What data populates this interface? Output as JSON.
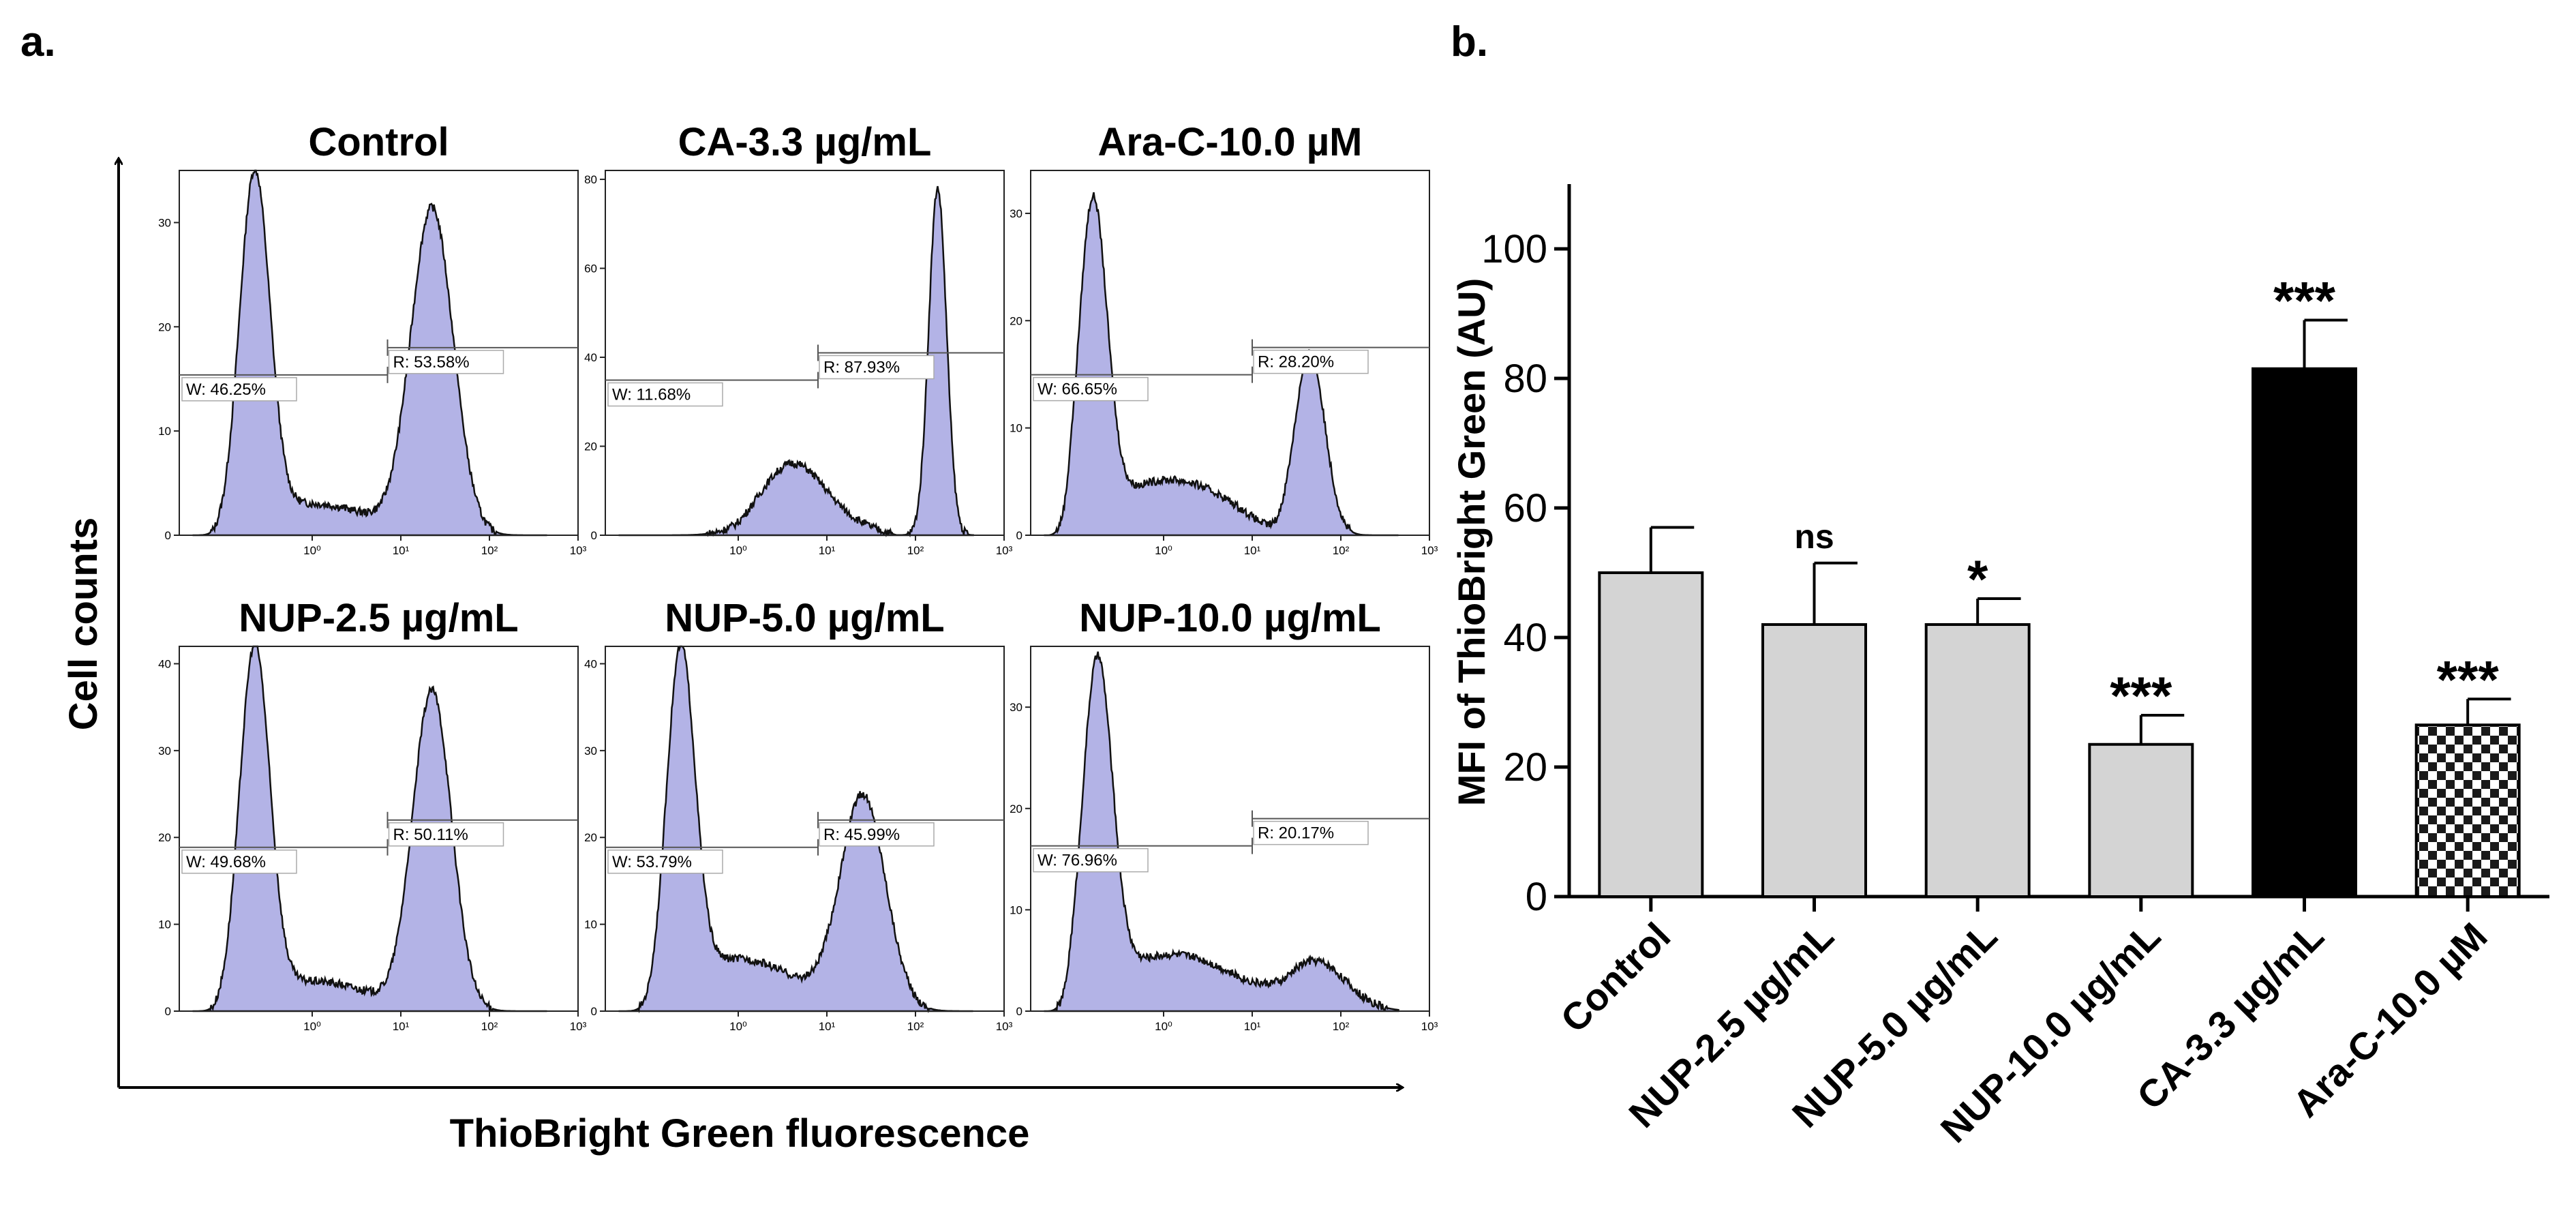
{
  "panel_a": {
    "label": "a.",
    "y_axis_label": "Cell counts",
    "x_axis_label": "ThioBright Green fluorescence",
    "x_tick_labels": [
      "10⁰",
      "10¹",
      "10²",
      "10³"
    ],
    "fill_color": "#b3b3e6",
    "histograms": [
      {
        "title": "Control",
        "ymax": 35,
        "yticks": [
          0,
          10,
          20,
          30
        ],
        "w_label": "W: 46.25%",
        "r_label": "R: 53.58%",
        "peaks": [
          {
            "pos": -0.65,
            "h": 33.5,
            "w": 0.17
          },
          {
            "pos": 1.35,
            "h": 31.5,
            "w": 0.24
          }
        ],
        "base": {
          "start": -1.0,
          "end": 2.0,
          "h": 3.5
        },
        "gate_y": 18,
        "split": 0.85
      },
      {
        "title": "CA-3.3 µg/mL",
        "ymax": 82,
        "yticks": [
          0,
          20,
          40,
          60,
          80
        ],
        "w_label": "W: 11.68%",
        "r_label": "R: 87.93%",
        "peaks": [
          {
            "pos": 0.6,
            "h": 13,
            "w": 0.35
          },
          {
            "pos": 2.25,
            "h": 78,
            "w": 0.1
          }
        ],
        "base": {
          "start": 0.0,
          "end": 2.5,
          "h": 4
        },
        "gate_y": 41,
        "split": 0.9
      },
      {
        "title": "Ara-C-10.0 µM",
        "ymax": 34,
        "yticks": [
          0,
          10,
          20,
          30
        ],
        "w_label": "W: 66.65%",
        "r_label": "R: 28.20%",
        "peaks": [
          {
            "pos": -0.8,
            "h": 30,
            "w": 0.16
          },
          {
            "pos": 1.65,
            "h": 17,
            "w": 0.17
          }
        ],
        "base": {
          "start": -1.0,
          "end": 2.2,
          "h": 6
        },
        "gate_y": 17.5,
        "split": 1.0
      },
      {
        "title": "NUP-2.5 µg/mL",
        "ymax": 42,
        "yticks": [
          0,
          10,
          20,
          30,
          40
        ],
        "w_label": "W: 49.68%",
        "r_label": "R: 50.11%",
        "peaks": [
          {
            "pos": -0.65,
            "h": 40.5,
            "w": 0.17
          },
          {
            "pos": 1.35,
            "h": 37,
            "w": 0.22
          }
        ],
        "base": {
          "start": -1.0,
          "end": 2.0,
          "h": 4
        },
        "gate_y": 22,
        "split": 0.85
      },
      {
        "title": "NUP-5.0 µg/mL",
        "ymax": 42,
        "yticks": [
          0,
          10,
          20,
          30,
          40
        ],
        "w_label": "W: 53.79%",
        "r_label": "R: 45.99%",
        "peaks": [
          {
            "pos": -0.65,
            "h": 39,
            "w": 0.16
          },
          {
            "pos": 1.4,
            "h": 25,
            "w": 0.26
          }
        ],
        "base": {
          "start": -1.0,
          "end": 2.0,
          "h": 7
        },
        "gate_y": 22,
        "split": 0.9
      },
      {
        "title": "NUP-10.0 µg/mL",
        "ymax": 36,
        "yticks": [
          0,
          10,
          20,
          30
        ],
        "w_label": "W: 76.96%",
        "r_label": "R: 20.17%",
        "peaks": [
          {
            "pos": -0.75,
            "h": 33,
            "w": 0.17
          },
          {
            "pos": 1.7,
            "h": 5,
            "w": 0.35
          }
        ],
        "base": {
          "start": -1.0,
          "end": 2.3,
          "h": 6.5
        },
        "gate_y": 19,
        "split": 1.0
      }
    ]
  },
  "chart_data": {
    "type": "bar",
    "label": "b.",
    "title": "",
    "xlabel": "",
    "ylabel": "MFI of ThioBright Green (AU)",
    "ylim": [
      0,
      110
    ],
    "yticks": [
      0,
      20,
      40,
      60,
      80,
      100
    ],
    "categories": [
      "Control",
      "NUP-2.5 µg/mL",
      "NUP-5.0 µg/mL",
      "NUP-10.0 µg/mL",
      "CA-3.3 µg/mL",
      "Ara-C-10.0 µM"
    ],
    "values": [
      50,
      42,
      42,
      23.5,
      81.5,
      26.5
    ],
    "errors": [
      7,
      9.5,
      4,
      4.5,
      7.5,
      4
    ],
    "significance": [
      "",
      "ns",
      "*",
      "***",
      "***",
      "***"
    ],
    "bar_styles": [
      "light-gray",
      "light-gray",
      "light-gray",
      "light-gray",
      "black",
      "checkered"
    ],
    "colors": {
      "light-gray": "#d4d4d4",
      "black": "#000000"
    }
  }
}
